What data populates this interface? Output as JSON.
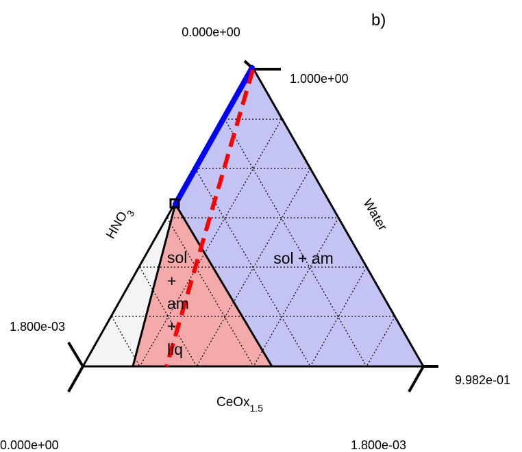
{
  "panel_label": "b)",
  "colors": {
    "sol_am_region": "#c4c4f4",
    "sol_am_liq_region": "#f4aaaa",
    "light_region": "#f4f4f4",
    "tie_line": "#ff0000",
    "edge_line": "#0000ff"
  },
  "axes": {
    "top": {
      "title_text": "",
      "corner_value_1": "0.000e+00",
      "corner_value_2": "1.000e+00"
    },
    "left": {
      "title_base": "HNO",
      "title_sub": "3",
      "corner_value": "1.800e-03"
    },
    "right": {
      "title": "Water",
      "corner_value": "9.982e-01"
    },
    "bottom": {
      "title_base": "CeOx",
      "title_sub": "1.5",
      "corner_value_left": "0.000e+00",
      "corner_value_right": "1.800e-03"
    }
  },
  "regions": {
    "sol_am": "sol + am",
    "sol_am_liq": [
      "sol",
      "+",
      "am",
      "+",
      "liq"
    ]
  }
}
